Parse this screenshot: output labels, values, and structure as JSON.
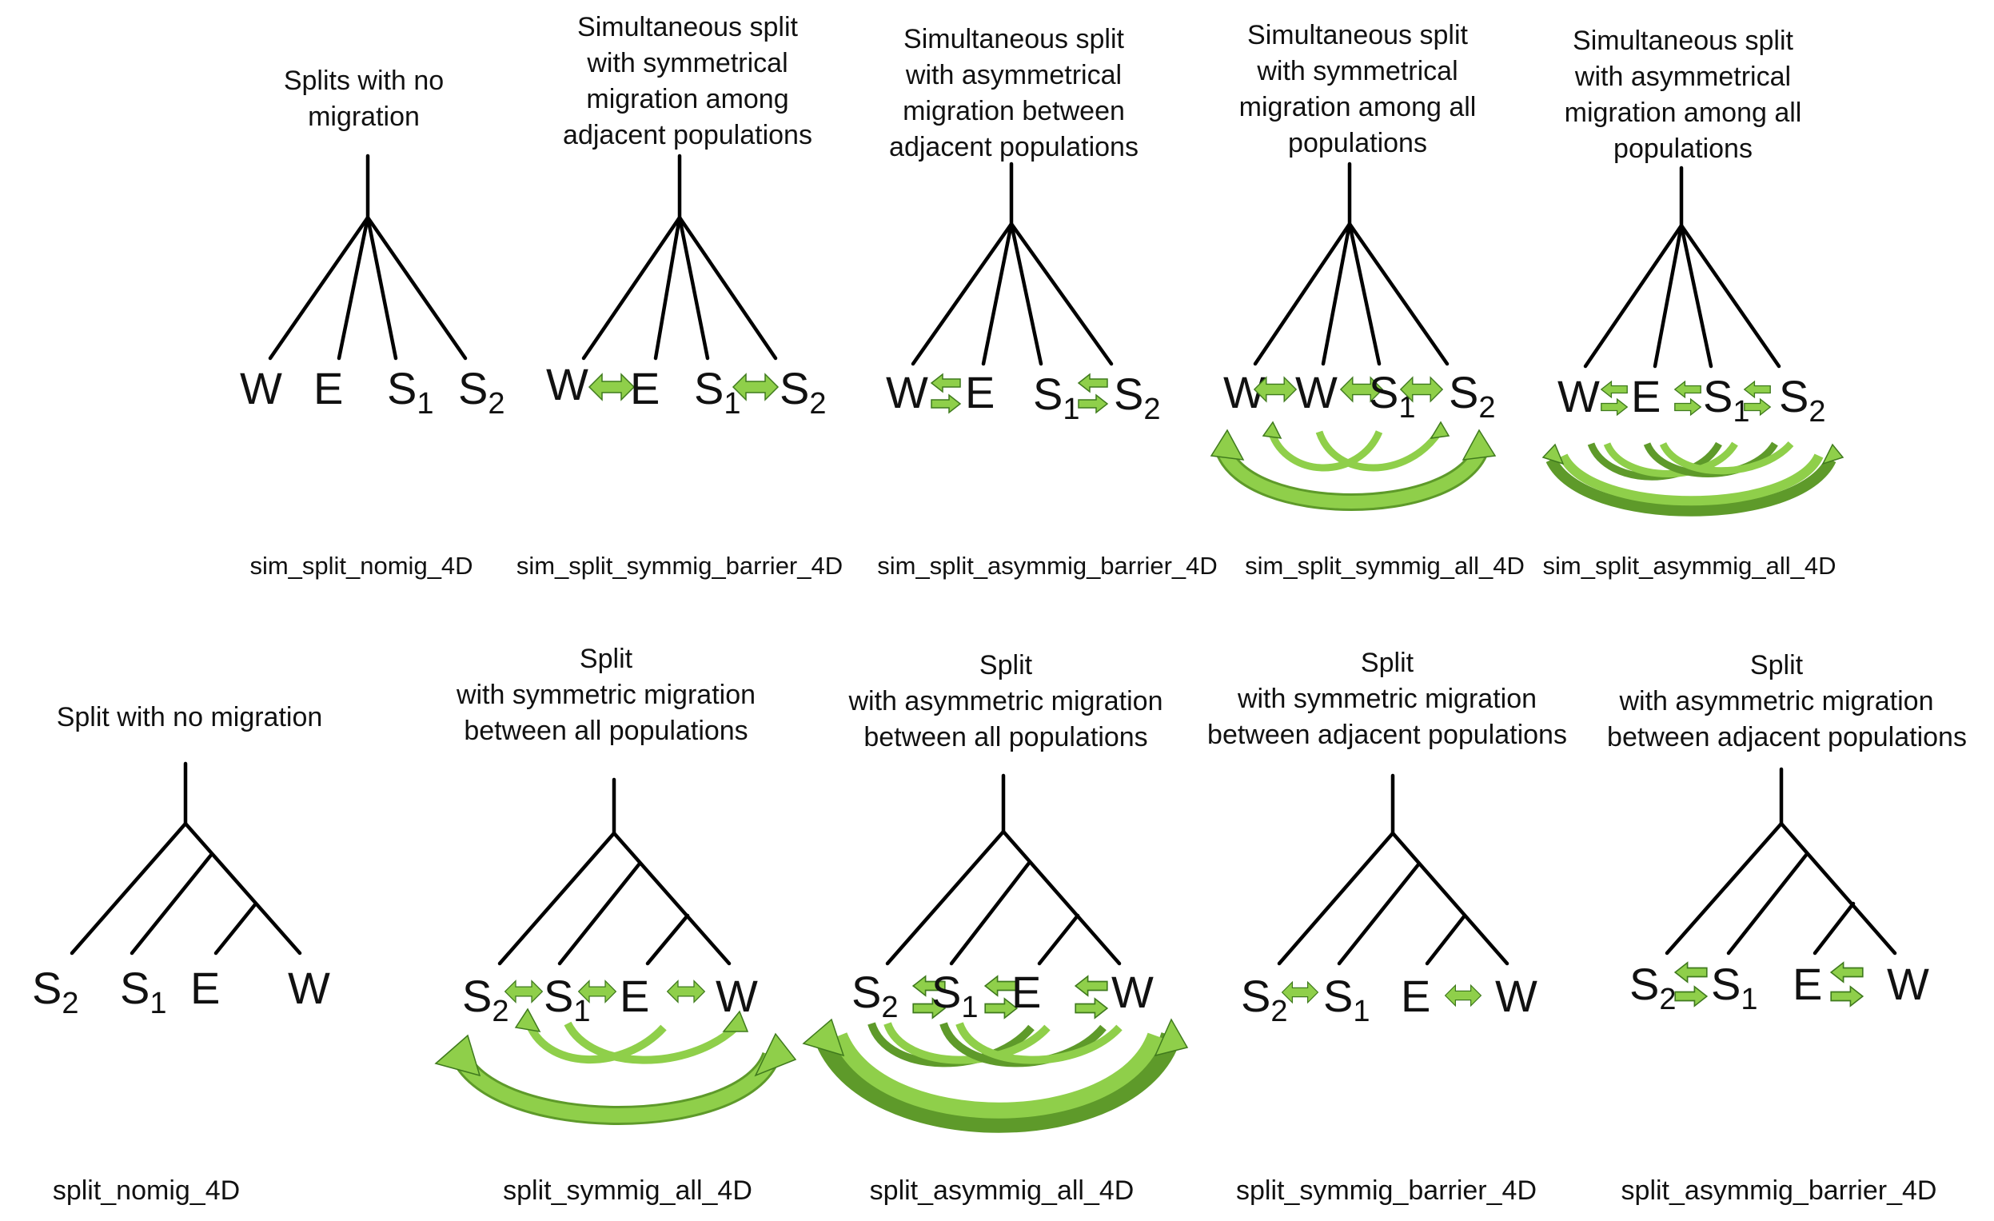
{
  "colors": {
    "arrow_fill": "#8fcf4a",
    "arrow_dark": "#5e9a2a",
    "arrow_stroke": "#3f7a1d",
    "branch": "#000000"
  },
  "panels": [
    {
      "id": "sim_split_nomig_4D",
      "caption": "sim_split_nomig_4D",
      "title": [
        "Splits with no",
        "migration"
      ]
    },
    {
      "id": "sim_split_symmig_barrier_4D",
      "caption": "sim_split_symmig_barrier_4D",
      "title": [
        "Simultaneous split",
        "with symmetrical",
        "migration among",
        "adjacent populations"
      ]
    },
    {
      "id": "sim_split_asymmig_barrier_4D",
      "caption": "sim_split_asymmig_barrier_4D",
      "title": [
        "Simultaneous split",
        "with asymmetrical",
        "migration between",
        "adjacent populations"
      ]
    },
    {
      "id": "sim_split_symmig_all_4D",
      "caption": "sim_split_symmig_all_4D",
      "title": [
        "Simultaneous split",
        "with symmetrical",
        "migration among all",
        "populations"
      ]
    },
    {
      "id": "sim_split_asymmig_all_4D",
      "caption": "sim_split_asymmig_all_4D",
      "title": [
        "Simultaneous split",
        "with asymmetrical",
        "migration among all",
        "populations"
      ]
    },
    {
      "id": "split_nomig_4D",
      "caption": "split_nomig_4D",
      "title": [
        "Split with no migration"
      ]
    },
    {
      "id": "split_symmig_all_4D",
      "caption": "split_symmig_all_4D",
      "title": [
        "Split",
        "with symmetric migration",
        "between all populations"
      ]
    },
    {
      "id": "split_asymmig_all_4D",
      "caption": "split_asymmig_all_4D",
      "title": [
        "Split",
        "with asymmetric migration",
        "between all populations"
      ]
    },
    {
      "id": "split_symmig_barrier_4D",
      "caption": "split_symmig_barrier_4D",
      "title": [
        "Split",
        "with symmetric migration",
        "between adjacent populations"
      ]
    },
    {
      "id": "split_asymmig_barrier_4D",
      "caption": "split_asymmig_barrier_4D",
      "title": [
        "Split",
        "with asymmetric migration",
        "between adjacent populations"
      ]
    }
  ],
  "tips": {
    "W": "W",
    "E": "E",
    "S": "S",
    "one": "1",
    "two": "2"
  }
}
